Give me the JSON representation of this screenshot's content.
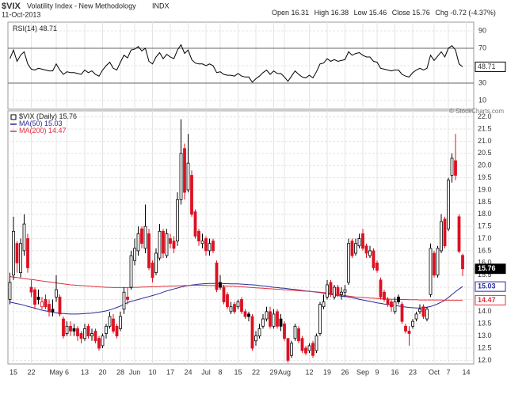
{
  "chart_data": [
    {
      "type": "line",
      "series": [
        {
          "name": "RSI(14)",
          "color": "#000000",
          "values": [
            58,
            68,
            55,
            62,
            66,
            52,
            46,
            45,
            47,
            46,
            45,
            44,
            44,
            52,
            45,
            40,
            43,
            42,
            42,
            41,
            40,
            45,
            42,
            44,
            40,
            38,
            45,
            50,
            54,
            47,
            45,
            54,
            62,
            59,
            68,
            69,
            72,
            67,
            70,
            55,
            52,
            60,
            65,
            58,
            63,
            60,
            58,
            68,
            74,
            64,
            68,
            57,
            53,
            52,
            52,
            50,
            52,
            50,
            42,
            43,
            40,
            39,
            39,
            38,
            41,
            38,
            37,
            37,
            31,
            35,
            38,
            42,
            45,
            40,
            44,
            41,
            41,
            37,
            32,
            38,
            44,
            40,
            37,
            36,
            39,
            36,
            43,
            52,
            53,
            58,
            55,
            57,
            55,
            56,
            57,
            66,
            62,
            64,
            65,
            62,
            60,
            60,
            55,
            54,
            47,
            46,
            45,
            44,
            45,
            45,
            40,
            38,
            37,
            42,
            45,
            47,
            45,
            47,
            62,
            56,
            61,
            66,
            60,
            70,
            73,
            68,
            52,
            48.71,
            null
          ]
        }
      ],
      "ylim": [
        0,
        100
      ],
      "yticks": [
        10,
        30,
        50,
        70,
        90
      ],
      "levels": [
        30,
        70
      ]
    },
    {
      "type": "candlestick",
      "title": "$VIX",
      "subtitle": "Volatility Index - New Methodology",
      "exchange": "INDX",
      "date": "11-Oct-2013",
      "quote_labels": {
        "open": "Open",
        "high": "High",
        "low": "Low",
        "close": "Close",
        "change": "Chg"
      },
      "change": -0.72,
      "change_pct_label": "(-4.37%)",
      "legend_label": "$VIX (Daily)",
      "watermark": "© StockCharts.com",
      "up_color": "#000000",
      "down_color": "#dd1122",
      "categories": [
        null,
        "15",
        null,
        null,
        null,
        null,
        "22",
        null,
        null,
        null,
        null,
        null,
        null,
        "May",
        null,
        null,
        "6",
        null,
        null,
        null,
        null,
        "13",
        null,
        null,
        null,
        null,
        "20",
        null,
        null,
        null,
        null,
        "28",
        null,
        null,
        null,
        "Jun",
        null,
        null,
        null,
        null,
        "10",
        null,
        null,
        null,
        null,
        "17",
        null,
        null,
        null,
        null,
        "24",
        null,
        null,
        null,
        null,
        "Jul",
        null,
        null,
        null,
        "8",
        null,
        null,
        null,
        null,
        "15",
        null,
        null,
        null,
        null,
        "22",
        null,
        null,
        null,
        null,
        "29",
        null,
        null,
        "Aug",
        null,
        null,
        null,
        null,
        null,
        null,
        "12",
        null,
        null,
        null,
        null,
        "19",
        null,
        null,
        null,
        null,
        "26",
        null,
        null,
        null,
        null,
        "Sep",
        null,
        null,
        null,
        "9",
        null,
        null,
        null,
        null,
        "16",
        null,
        null,
        null,
        null,
        "23",
        null,
        null,
        null,
        null,
        null,
        "Oct",
        null,
        null,
        null,
        "7",
        null,
        null,
        null,
        null,
        "14"
      ],
      "open": [
        14.5,
        15.5,
        16.8,
        15.6,
        16.5,
        17.0,
        15.0,
        14.9,
        14.6,
        14.2,
        14.5,
        14.3,
        14.1,
        14.6,
        14.6,
        13.7,
        13.1,
        13.4,
        13.3,
        13.3,
        13.1,
        12.9,
        13.4,
        13.0,
        13.2,
        12.9,
        12.6,
        13.1,
        13.4,
        13.7,
        13.4,
        13.3,
        14.1,
        14.6,
        15.0,
        16.1,
        16.5,
        17.4,
        16.6,
        17.2,
        16.0,
        15.6,
        16.2,
        17.3,
        16.3,
        17.0,
        16.9,
        16.9,
        18.6,
        20.7,
        19.0,
        19.6,
        18.1,
        17.3,
        16.8,
        17.0,
        16.5,
        16.9,
        16.0,
        15.2,
        15.0,
        14.7,
        14.0,
        14.3,
        14.2,
        14.5,
        14.0,
        13.9,
        13.8,
        12.8,
        13.0,
        13.4,
        13.7,
        14.0,
        13.4,
        14.0,
        13.7,
        13.5,
        12.9,
        12.2,
        12.9,
        13.3,
        12.9,
        12.5,
        12.4,
        12.7,
        12.4,
        13.1,
        14.2,
        14.6,
        15.2,
        14.6,
        15.0,
        14.7,
        14.8,
        15.2,
        16.9,
        16.4,
        16.7,
        17.2,
        16.7,
        16.3,
        16.5,
        16.0,
        15.3,
        14.8,
        14.5,
        14.4,
        14.0,
        14.6,
        14.3,
        13.4,
        13.2,
        13.4,
        13.7,
        14.0,
        14.2,
        13.7,
        14.7,
        16.4,
        15.5,
        16.5,
        17.8,
        17.4,
        19.6,
        20.2,
        17.9,
        16.31,
        null
      ],
      "high": [
        15.6,
        17.9,
        16.9,
        17.0,
        18.0,
        17.2,
        15.3,
        15.0,
        14.9,
        14.6,
        14.7,
        14.5,
        14.5,
        15.5,
        14.7,
        13.8,
        13.6,
        13.6,
        13.5,
        13.4,
        13.2,
        13.5,
        13.5,
        13.3,
        13.3,
        13.0,
        13.1,
        13.5,
        14.0,
        13.9,
        13.5,
        14.0,
        15.0,
        15.0,
        16.5,
        17.0,
        17.5,
        17.5,
        18.4,
        17.4,
        16.1,
        16.6,
        17.6,
        17.4,
        17.4,
        17.2,
        17.1,
        18.9,
        21.9,
        20.9,
        21.3,
        19.8,
        18.2,
        17.4,
        17.2,
        17.1,
        17.0,
        17.0,
        16.1,
        15.5,
        15.1,
        14.8,
        14.4,
        14.4,
        14.5,
        14.6,
        14.1,
        14.0,
        13.9,
        13.2,
        13.5,
        13.9,
        14.2,
        14.2,
        14.1,
        14.1,
        13.9,
        13.6,
        12.9,
        12.8,
        13.5,
        13.4,
        13.0,
        12.6,
        12.7,
        12.8,
        13.1,
        14.4,
        14.7,
        15.3,
        15.3,
        15.1,
        15.1,
        15.0,
        15.1,
        17.0,
        17.0,
        17.0,
        17.2,
        17.4,
        16.8,
        16.7,
        16.6,
        16.1,
        15.4,
        14.9,
        14.6,
        14.5,
        14.6,
        14.7,
        14.4,
        13.5,
        13.4,
        13.7,
        14.0,
        14.3,
        14.3,
        14.2,
        16.8,
        16.5,
        16.7,
        18.0,
        17.9,
        19.5,
        20.5,
        21.3,
        18.0,
        16.38,
        null
      ],
      "low": [
        14.3,
        15.3,
        15.6,
        15.4,
        16.3,
        15.6,
        14.6,
        14.1,
        14.3,
        14.1,
        14.1,
        13.8,
        13.8,
        14.4,
        13.8,
        12.9,
        13.0,
        13.0,
        13.0,
        12.8,
        12.7,
        12.8,
        12.9,
        12.8,
        12.7,
        12.4,
        12.5,
        12.9,
        13.3,
        13.1,
        12.9,
        13.2,
        13.9,
        14.3,
        14.9,
        15.9,
        16.3,
        16.6,
        16.4,
        15.7,
        15.2,
        15.5,
        16.1,
        16.2,
        16.2,
        16.6,
        16.4,
        16.7,
        18.4,
        18.6,
        18.9,
        17.9,
        17.0,
        16.7,
        16.6,
        16.3,
        16.3,
        16.4,
        14.8,
        14.9,
        14.3,
        14.1,
        13.9,
        13.9,
        14.1,
        13.9,
        13.7,
        13.6,
        12.4,
        12.6,
        12.9,
        13.3,
        13.6,
        13.3,
        13.3,
        13.3,
        13.2,
        12.8,
        11.9,
        12.1,
        12.8,
        12.7,
        12.3,
        12.2,
        12.3,
        12.1,
        12.3,
        13.0,
        14.1,
        14.5,
        14.6,
        14.5,
        14.6,
        14.5,
        14.6,
        15.1,
        16.2,
        16.3,
        16.6,
        16.5,
        16.2,
        16.2,
        15.7,
        15.6,
        14.5,
        14.4,
        14.2,
        14.0,
        13.9,
        14.3,
        13.5,
        13.1,
        12.6,
        13.3,
        13.6,
        13.9,
        13.7,
        13.6,
        14.6,
        15.4,
        15.4,
        16.4,
        16.6,
        17.3,
        19.3,
        19.4,
        16.4,
        15.46,
        null
      ],
      "close": [
        15.2,
        17.3,
        16.0,
        16.8,
        17.6,
        15.8,
        14.8,
        14.3,
        14.5,
        14.4,
        14.2,
        14.0,
        14.0,
        14.9,
        13.9,
        13.0,
        13.4,
        13.2,
        13.2,
        13.0,
        12.9,
        13.3,
        13.0,
        13.1,
        12.8,
        12.5,
        13.0,
        13.4,
        13.8,
        13.2,
        13.0,
        13.8,
        14.8,
        14.5,
        16.3,
        16.6,
        17.2,
        16.8,
        17.5,
        15.8,
        15.4,
        16.4,
        17.3,
        16.4,
        17.2,
        16.8,
        16.6,
        18.6,
        20.5,
        18.9,
        20.1,
        18.0,
        17.1,
        16.9,
        16.9,
        16.5,
        16.8,
        16.5,
        14.9,
        15.0,
        14.4,
        14.2,
        14.2,
        14.0,
        14.4,
        14.0,
        13.8,
        13.8,
        12.5,
        13.0,
        13.3,
        13.7,
        14.0,
        13.4,
        13.9,
        13.4,
        13.4,
        12.9,
        12.0,
        12.7,
        13.4,
        12.8,
        12.4,
        12.3,
        12.6,
        12.2,
        13.0,
        14.3,
        14.4,
        15.1,
        14.7,
        15.0,
        14.7,
        14.8,
        14.9,
        16.8,
        16.3,
        16.8,
        17.0,
        16.6,
        16.4,
        16.5,
        15.8,
        15.7,
        14.6,
        14.5,
        14.3,
        14.2,
        14.4,
        14.4,
        13.6,
        13.2,
        13.1,
        13.6,
        13.9,
        14.1,
        13.8,
        14.1,
        16.6,
        15.5,
        16.6,
        17.7,
        16.7,
        19.4,
        20.3,
        19.6,
        16.48,
        15.76,
        null
      ],
      "overlays": [
        {
          "name": "MA(50)",
          "color": "#2a2a9a",
          "values": [
            14.39,
            14.36,
            14.33,
            14.3,
            14.26,
            14.22,
            14.18,
            14.14,
            14.1,
            14.06,
            14.03,
            14.0,
            13.97,
            13.95,
            13.93,
            13.92,
            13.91,
            13.9,
            13.9,
            13.9,
            13.91,
            13.92,
            13.93,
            13.94,
            13.96,
            13.98,
            14.0,
            14.03,
            14.07,
            14.12,
            14.17,
            14.23,
            14.3,
            14.37,
            14.42,
            14.46,
            14.5,
            14.54,
            14.58,
            14.62,
            14.66,
            14.7,
            14.75,
            14.8,
            14.85,
            14.89,
            14.93,
            14.97,
            15.01,
            15.04,
            15.07,
            15.09,
            15.11,
            15.13,
            15.14,
            15.15,
            15.16,
            15.16,
            15.16,
            15.16,
            15.15,
            15.15,
            15.14,
            15.14,
            15.14,
            15.13,
            15.12,
            15.11,
            15.1,
            15.09,
            15.07,
            15.05,
            15.04,
            15.02,
            15.0,
            14.99,
            14.97,
            14.96,
            14.94,
            14.92,
            14.91,
            14.89,
            14.87,
            14.85,
            14.84,
            14.82,
            14.8,
            14.78,
            14.76,
            14.73,
            14.71,
            14.68,
            14.66,
            14.64,
            14.62,
            14.6,
            14.57,
            14.54,
            14.51,
            14.48,
            14.45,
            14.42,
            14.39,
            14.36,
            14.34,
            14.31,
            14.29,
            14.27,
            14.25,
            14.23,
            14.21,
            14.19,
            14.17,
            14.16,
            14.15,
            14.15,
            14.16,
            14.18,
            14.21,
            14.26,
            14.32,
            14.39,
            14.47,
            14.58,
            14.7,
            14.82,
            14.93,
            15.03,
            null
          ]
        },
        {
          "name": "MA(200)",
          "color": "#e0303a",
          "values": [
            15.44,
            15.42,
            15.4,
            15.38,
            15.36,
            15.34,
            15.32,
            15.3,
            15.28,
            15.26,
            15.24,
            15.22,
            15.2,
            15.18,
            15.16,
            15.14,
            15.12,
            15.1,
            15.09,
            15.08,
            15.07,
            15.06,
            15.05,
            15.04,
            15.03,
            15.02,
            15.01,
            15.0,
            15.0,
            14.99,
            14.99,
            14.99,
            14.99,
            14.99,
            14.99,
            15.0,
            15.0,
            15.01,
            15.01,
            15.02,
            15.02,
            15.03,
            15.03,
            15.04,
            15.04,
            15.05,
            15.05,
            15.06,
            15.06,
            15.07,
            15.07,
            15.08,
            15.08,
            15.08,
            15.08,
            15.08,
            15.07,
            15.07,
            15.06,
            15.06,
            15.05,
            15.05,
            15.04,
            15.04,
            15.03,
            15.02,
            15.01,
            15.0,
            14.99,
            14.98,
            14.97,
            14.96,
            14.95,
            14.94,
            14.93,
            14.92,
            14.91,
            14.9,
            14.89,
            14.88,
            14.87,
            14.86,
            14.85,
            14.84,
            14.83,
            14.82,
            14.81,
            14.8,
            14.78,
            14.76,
            14.74,
            14.72,
            14.7,
            14.68,
            14.66,
            14.64,
            14.62,
            14.6,
            14.59,
            14.58,
            14.57,
            14.56,
            14.55,
            14.54,
            14.53,
            14.52,
            14.52,
            14.51,
            14.51,
            14.5,
            14.5,
            14.5,
            14.49,
            14.49,
            14.49,
            14.48,
            14.48,
            14.48,
            14.48,
            14.48,
            14.48,
            14.48,
            14.47,
            14.47,
            14.47,
            14.47,
            14.47,
            14.47,
            null
          ]
        }
      ],
      "ylim": [
        11.85,
        22.25
      ],
      "yticks": [
        {
          "value": 12,
          "label": "12.0"
        },
        {
          "value": 12.5,
          "label": "12.5"
        },
        {
          "value": 13,
          "label": "13.0"
        },
        {
          "value": 13.5,
          "label": "13.5"
        },
        {
          "value": 14,
          "label": "14.0"
        },
        {
          "value": 14.5,
          "label": "14.5"
        },
        {
          "value": 15,
          "label": "15.0"
        },
        {
          "value": 15.5,
          "label": "15.5"
        },
        {
          "value": 16,
          "label": "16.0"
        },
        {
          "value": 16.5,
          "label": "16.5"
        },
        {
          "value": 17,
          "label": "17.0"
        },
        {
          "value": 17.5,
          "label": "17.5"
        },
        {
          "value": 18,
          "label": "18.0"
        },
        {
          "value": 18.5,
          "label": "18.5"
        },
        {
          "value": 19,
          "label": "19.0"
        },
        {
          "value": 19.5,
          "label": "19.5"
        },
        {
          "value": 20,
          "label": "20.0"
        },
        {
          "value": 20.5,
          "label": "20.5"
        },
        {
          "value": 21,
          "label": "21.0"
        },
        {
          "value": 21.5,
          "label": "21.5"
        },
        {
          "value": 22,
          "label": "22.0"
        }
      ],
      "grid": true
    }
  ]
}
